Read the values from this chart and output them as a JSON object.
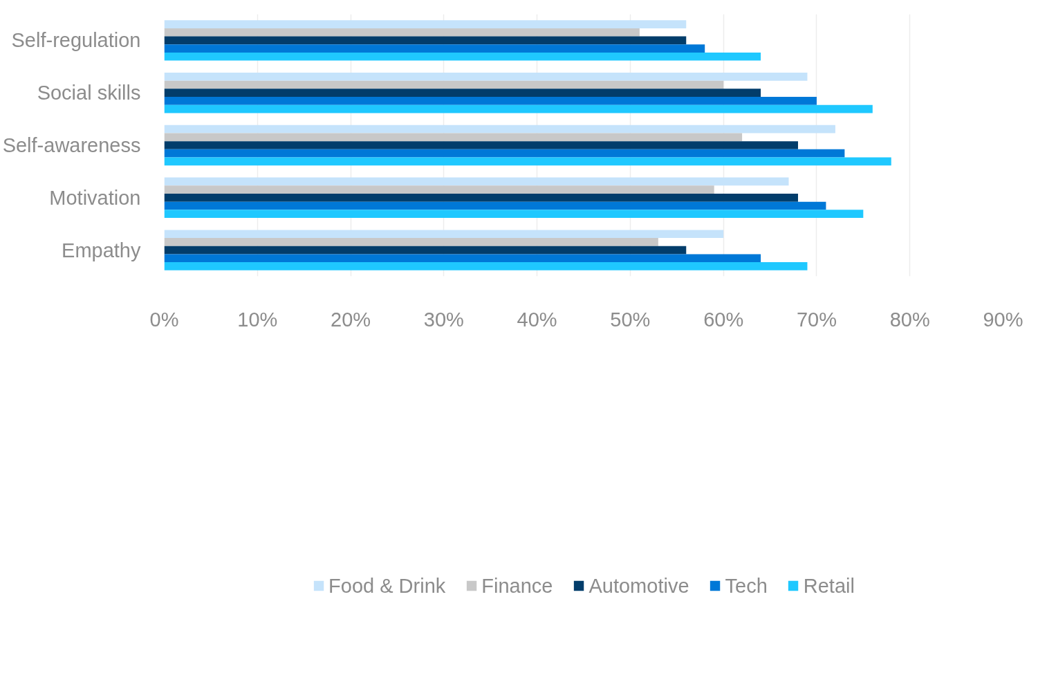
{
  "chart_data": {
    "type": "bar",
    "orientation": "horizontal",
    "categories": [
      "Self-regulation",
      "Social skills",
      "Self-awareness",
      "Motivation",
      "Empathy"
    ],
    "series": [
      {
        "name": "Food & Drink",
        "color": "#c5e3fb",
        "values": [
          56,
          69,
          72,
          67,
          60
        ]
      },
      {
        "name": "Finance",
        "color": "#c8c8c8",
        "values": [
          51,
          60,
          62,
          59,
          53
        ]
      },
      {
        "name": "Automotive",
        "color": "#023d6b",
        "values": [
          56,
          64,
          68,
          68,
          56
        ]
      },
      {
        "name": "Tech",
        "color": "#0078d7",
        "values": [
          58,
          70,
          73,
          71,
          64
        ]
      },
      {
        "name": "Retail",
        "color": "#1fc8ff",
        "values": [
          64,
          76,
          78,
          75,
          69
        ]
      }
    ],
    "xlim": [
      0,
      90
    ],
    "xticks": [
      {
        "value": 0,
        "label": "0%"
      },
      {
        "value": 10,
        "label": "10%"
      },
      {
        "value": 20,
        "label": "20%"
      },
      {
        "value": 30,
        "label": "30%"
      },
      {
        "value": 40,
        "label": "40%"
      },
      {
        "value": 50,
        "label": "50%"
      },
      {
        "value": 60,
        "label": "60%"
      },
      {
        "value": 70,
        "label": "70%"
      },
      {
        "value": 80,
        "label": "80%"
      },
      {
        "value": 90,
        "label": "90%"
      }
    ],
    "grid": "x",
    "legend": "bottom"
  }
}
